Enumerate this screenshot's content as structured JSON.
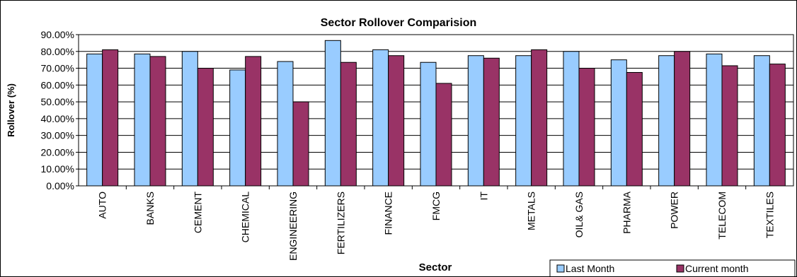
{
  "chart_data": {
    "type": "bar",
    "title": "Sector Rollover Comparision",
    "xlabel": "Sector",
    "ylabel": "Rollover (%)",
    "ylim": [
      0,
      90
    ],
    "yticks": [
      "0.00%",
      "10.00%",
      "20.00%",
      "30.00%",
      "40.00%",
      "50.00%",
      "60.00%",
      "70.00%",
      "80.00%",
      "90.00%"
    ],
    "grid": "horizontal",
    "legend_position": "bottom-right",
    "categories": [
      "AUTO",
      "BANKS",
      "CEMENT",
      "CHEMICAL",
      "ENGINEERING",
      "FERTILIZERS",
      "FINANCE",
      "FMCG",
      "IT",
      "METALS",
      "OIL& GAS",
      "PHARMA",
      "POWER",
      "TELECOM",
      "TEXTILES"
    ],
    "series": [
      {
        "name": "Last Month",
        "color": "#99CCFF",
        "values": [
          78.5,
          78.5,
          80.0,
          69.0,
          74.0,
          86.5,
          81.0,
          73.5,
          77.5,
          77.5,
          80.0,
          75.0,
          77.5,
          78.5,
          77.5
        ]
      },
      {
        "name": "Current month",
        "color": "#993366",
        "values": [
          81.0,
          77.0,
          70.0,
          77.0,
          50.0,
          73.5,
          77.5,
          61.0,
          76.0,
          81.0,
          70.0,
          67.5,
          80.0,
          71.5,
          72.5
        ]
      }
    ]
  }
}
